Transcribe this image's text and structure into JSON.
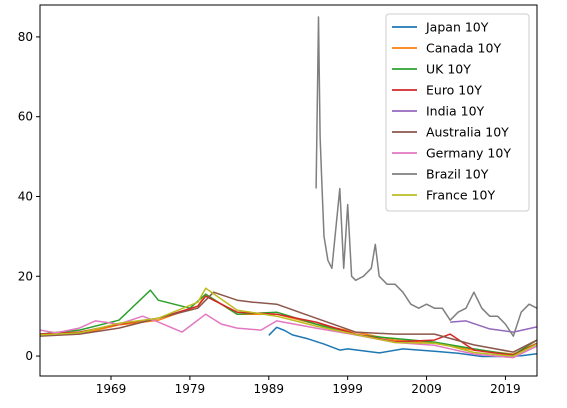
{
  "chart_data": {
    "type": "line",
    "title": "",
    "xlabel": "",
    "ylabel": "",
    "xlim": [
      1960,
      2023
    ],
    "ylim": [
      -5,
      88
    ],
    "x_ticks": [
      1969,
      1979,
      1989,
      1999,
      2009,
      2019
    ],
    "y_ticks": [
      0,
      20,
      40,
      60,
      80
    ],
    "grid": false,
    "legend": "upper-right",
    "series": [
      {
        "name": "Japan 10Y",
        "color": "#1f77b4",
        "x": [
          1989,
          1990,
          1991,
          1992,
          1994,
          1996,
          1998,
          1999,
          2003,
          2006,
          2010,
          2013,
          2016,
          2019,
          2021,
          2023
        ],
        "y": [
          5.2,
          7.2,
          6.4,
          5.3,
          4.3,
          3.0,
          1.5,
          1.8,
          0.8,
          1.8,
          1.2,
          0.7,
          -0.1,
          -0.1,
          0.1,
          0.6
        ]
      },
      {
        "name": "Canada 10Y",
        "color": "#ff7f0e",
        "x": [
          1960,
          1965,
          1970,
          1975,
          1980,
          1981,
          1985,
          1990,
          1995,
          2000,
          2005,
          2010,
          2015,
          2020,
          2023
        ],
        "y": [
          5.2,
          5.5,
          7.8,
          9.0,
          12.5,
          15.5,
          10.5,
          10.5,
          8.0,
          6.0,
          4.0,
          3.2,
          1.5,
          0.5,
          3.2
        ]
      },
      {
        "name": "UK 10Y",
        "color": "#2ca02c",
        "x": [
          1960,
          1965,
          1970,
          1974,
          1975,
          1977,
          1979,
          1981,
          1985,
          1990,
          1995,
          2000,
          2005,
          2010,
          2015,
          2020,
          2023
        ],
        "y": [
          5.5,
          6.5,
          9.0,
          16.5,
          14.0,
          13.0,
          12.0,
          15.5,
          10.5,
          11.0,
          8.0,
          5.3,
          4.4,
          3.5,
          1.8,
          0.3,
          4.0
        ]
      },
      {
        "name": "Euro 10Y",
        "color": "#d62728",
        "x": [
          1960,
          1965,
          1970,
          1975,
          1980,
          1981,
          1985,
          1990,
          1995,
          2000,
          2005,
          2010,
          2012,
          2015,
          2020,
          2023
        ],
        "y": [
          5.5,
          6.0,
          8.0,
          9.5,
          12.5,
          15.0,
          11.0,
          10.5,
          8.5,
          5.5,
          3.6,
          4.0,
          5.5,
          1.5,
          0.2,
          3.2
        ]
      },
      {
        "name": "India 10Y",
        "color": "#9467bd",
        "x": [
          2012,
          2014,
          2017,
          2020,
          2023
        ],
        "y": [
          8.5,
          8.8,
          6.8,
          6.0,
          7.3
        ]
      },
      {
        "name": "Australia 10Y",
        "color": "#8c564b",
        "x": [
          1960,
          1965,
          1970,
          1975,
          1980,
          1982,
          1985,
          1987,
          1990,
          1995,
          2000,
          2005,
          2010,
          2015,
          2020,
          2023
        ],
        "y": [
          5.0,
          5.5,
          7.0,
          9.5,
          12.0,
          16.0,
          14.0,
          13.5,
          13.0,
          9.5,
          6.0,
          5.5,
          5.5,
          2.8,
          1.0,
          4.0
        ]
      },
      {
        "name": "Germany 10Y",
        "color": "#e377c2",
        "x": [
          1960,
          1962,
          1965,
          1967,
          1970,
          1973,
          1975,
          1978,
          1981,
          1983,
          1985,
          1988,
          1990,
          1995,
          2000,
          2005,
          2010,
          2015,
          2020,
          2023
        ],
        "y": [
          6.5,
          5.8,
          7.0,
          8.8,
          8.0,
          10.0,
          8.5,
          6.0,
          10.5,
          8.0,
          7.0,
          6.5,
          8.8,
          7.0,
          5.3,
          3.4,
          2.7,
          0.5,
          -0.4,
          2.5
        ]
      },
      {
        "name": "Brazil 10Y",
        "color": "#7f7f7f",
        "x": [
          1995,
          1995.3,
          1995.5,
          1995.7,
          1996,
          1996.5,
          1997,
          1998,
          1998.5,
          1999,
          1999.5,
          2000,
          2001,
          2002,
          2002.5,
          2003,
          2004,
          2005,
          2006,
          2007,
          2008,
          2009,
          2010,
          2011,
          2012,
          2013,
          2014,
          2015,
          2016,
          2017,
          2018,
          2019,
          2020,
          2021,
          2022,
          2023
        ],
        "y": [
          42,
          85,
          55,
          45,
          30,
          24,
          22,
          42,
          22,
          38,
          20,
          19,
          20,
          22,
          28,
          20,
          18,
          18,
          16,
          13,
          12,
          13,
          12,
          12,
          9,
          11,
          12,
          16,
          12,
          10,
          10,
          8,
          5,
          11,
          13,
          12
        ]
      },
      {
        "name": "France 10Y",
        "color": "#bcbd22",
        "x": [
          1960,
          1965,
          1970,
          1975,
          1980,
          1981,
          1985,
          1990,
          1995,
          2000,
          2005,
          2010,
          2012,
          2015,
          2020,
          2023
        ],
        "y": [
          5.3,
          5.8,
          8.2,
          9.5,
          13.5,
          17.0,
          11.5,
          10.0,
          7.5,
          5.4,
          3.4,
          3.2,
          2.5,
          0.9,
          0.0,
          3.0
        ]
      }
    ]
  }
}
